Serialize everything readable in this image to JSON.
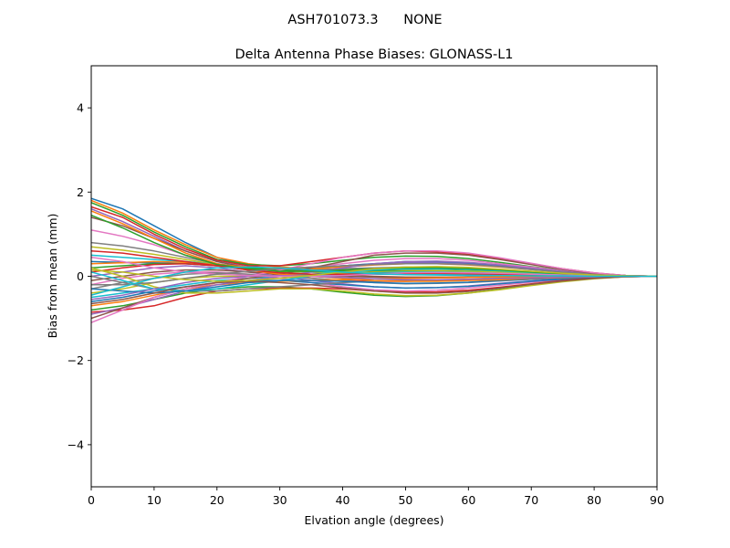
{
  "figure": {
    "suptitle": "ASH701073.3      NONE"
  },
  "chart_data": {
    "type": "line",
    "title": "Delta Antenna Phase Biases: GLONASS-L1",
    "xlabel": "Elvation angle (degrees)",
    "ylabel": "Bias from mean (mm)",
    "xlim": [
      0,
      90
    ],
    "ylim": [
      -5,
      5
    ],
    "xticks": [
      0,
      10,
      20,
      30,
      40,
      50,
      60,
      70,
      80,
      90
    ],
    "yticks": [
      -4,
      -2,
      0,
      2,
      4
    ],
    "ytick_labels": [
      "−4",
      "−2",
      "0",
      "2",
      "4"
    ],
    "grid": false,
    "legend": "none",
    "x": [
      0,
      5,
      10,
      15,
      20,
      25,
      30,
      35,
      40,
      45,
      50,
      55,
      60,
      65,
      70,
      75,
      80,
      85,
      90
    ],
    "series": [
      {
        "values": [
          1.85,
          1.6,
          1.2,
          0.8,
          0.45,
          0.25,
          0.15,
          0.1,
          0.05,
          0.05,
          0.05,
          0.05,
          0.03,
          0.02,
          0.02,
          0.01,
          0.0,
          0.0,
          0.0
        ]
      },
      {
        "values": [
          1.8,
          1.5,
          1.1,
          0.75,
          0.45,
          0.3,
          0.22,
          0.18,
          0.15,
          0.12,
          0.1,
          0.08,
          0.06,
          0.05,
          0.03,
          0.02,
          0.01,
          0.0,
          0.0
        ]
      },
      {
        "values": [
          1.75,
          1.45,
          1.05,
          0.7,
          0.4,
          0.28,
          0.25,
          0.3,
          0.38,
          0.45,
          0.48,
          0.47,
          0.42,
          0.33,
          0.23,
          0.14,
          0.07,
          0.02,
          0.0
        ]
      },
      {
        "values": [
          1.65,
          1.4,
          1.0,
          0.65,
          0.38,
          0.25,
          0.25,
          0.35,
          0.45,
          0.55,
          0.6,
          0.58,
          0.52,
          0.42,
          0.3,
          0.18,
          0.08,
          0.02,
          0.0
        ]
      },
      {
        "values": [
          1.6,
          1.3,
          0.95,
          0.6,
          0.35,
          0.22,
          0.18,
          0.2,
          0.25,
          0.3,
          0.33,
          0.33,
          0.3,
          0.25,
          0.18,
          0.1,
          0.05,
          0.01,
          0.0
        ]
      },
      {
        "values": [
          1.4,
          1.2,
          0.9,
          0.6,
          0.35,
          0.2,
          0.1,
          0.05,
          0.02,
          0.0,
          -0.02,
          -0.02,
          -0.02,
          -0.02,
          -0.01,
          -0.01,
          0.0,
          0.0,
          0.0
        ]
      },
      {
        "values": [
          1.1,
          0.95,
          0.75,
          0.5,
          0.3,
          0.2,
          0.18,
          0.22,
          0.3,
          0.38,
          0.42,
          0.42,
          0.38,
          0.3,
          0.22,
          0.13,
          0.06,
          0.02,
          0.0
        ]
      },
      {
        "values": [
          0.8,
          0.72,
          0.6,
          0.45,
          0.3,
          0.2,
          0.15,
          0.15,
          0.18,
          0.2,
          0.22,
          0.22,
          0.2,
          0.16,
          0.11,
          0.07,
          0.03,
          0.01,
          0.0
        ]
      },
      {
        "values": [
          0.7,
          0.62,
          0.52,
          0.4,
          0.28,
          0.18,
          0.12,
          0.1,
          0.08,
          0.06,
          0.05,
          0.04,
          0.03,
          0.02,
          0.02,
          0.01,
          0.0,
          0.0,
          0.0
        ]
      },
      {
        "values": [
          0.5,
          0.45,
          0.4,
          0.35,
          0.28,
          0.2,
          0.15,
          0.12,
          0.1,
          0.08,
          0.07,
          0.06,
          0.05,
          0.04,
          0.03,
          0.02,
          0.01,
          0.0,
          0.0
        ]
      },
      {
        "values": [
          0.35,
          0.33,
          0.32,
          0.3,
          0.25,
          0.2,
          0.18,
          0.2,
          0.25,
          0.3,
          0.35,
          0.35,
          0.32,
          0.26,
          0.19,
          0.11,
          0.05,
          0.01,
          0.0
        ]
      },
      {
        "values": [
          0.3,
          0.32,
          0.35,
          0.33,
          0.28,
          0.22,
          0.18,
          0.18,
          0.22,
          0.27,
          0.3,
          0.3,
          0.27,
          0.22,
          0.16,
          0.1,
          0.05,
          0.01,
          0.0
        ]
      },
      {
        "values": [
          0.2,
          0.25,
          0.3,
          0.3,
          0.25,
          0.2,
          0.15,
          0.12,
          0.12,
          0.13,
          0.14,
          0.14,
          0.13,
          0.11,
          0.08,
          0.05,
          0.02,
          0.01,
          0.0
        ]
      },
      {
        "values": [
          0.1,
          0.2,
          0.28,
          0.3,
          0.25,
          0.15,
          0.05,
          -0.05,
          -0.1,
          -0.12,
          -0.12,
          -0.1,
          -0.08,
          -0.06,
          -0.04,
          -0.02,
          -0.01,
          0.0,
          0.0
        ]
      },
      {
        "values": [
          0.0,
          0.1,
          0.2,
          0.25,
          0.2,
          0.1,
          0.0,
          -0.1,
          -0.18,
          -0.25,
          -0.28,
          -0.27,
          -0.23,
          -0.17,
          -0.11,
          -0.06,
          -0.02,
          0.0,
          0.0
        ]
      },
      {
        "values": [
          -0.1,
          0.0,
          0.1,
          0.15,
          0.15,
          0.1,
          0.05,
          0.02,
          0.0,
          -0.02,
          -0.03,
          -0.03,
          -0.02,
          -0.02,
          -0.01,
          -0.01,
          0.0,
          0.0,
          0.0
        ]
      },
      {
        "values": [
          -0.2,
          -0.05,
          0.05,
          0.1,
          0.1,
          0.05,
          -0.05,
          -0.15,
          -0.25,
          -0.32,
          -0.35,
          -0.33,
          -0.28,
          -0.21,
          -0.14,
          -0.08,
          -0.03,
          -0.01,
          0.0
        ]
      },
      {
        "values": [
          -0.3,
          -0.15,
          -0.05,
          0.05,
          0.08,
          0.05,
          0.0,
          -0.05,
          -0.1,
          -0.15,
          -0.18,
          -0.17,
          -0.15,
          -0.11,
          -0.07,
          -0.04,
          -0.02,
          0.0,
          0.0
        ]
      },
      {
        "values": [
          -0.4,
          -0.3,
          -0.15,
          -0.05,
          0.0,
          0.0,
          0.0,
          0.02,
          0.05,
          0.1,
          0.12,
          0.13,
          0.12,
          0.1,
          0.07,
          0.04,
          0.02,
          0.0,
          0.0
        ]
      },
      {
        "values": [
          -0.5,
          -0.4,
          -0.3,
          -0.2,
          -0.1,
          -0.05,
          0.0,
          0.05,
          0.1,
          0.15,
          0.18,
          0.18,
          0.16,
          0.13,
          0.09,
          0.05,
          0.02,
          0.01,
          0.0
        ]
      },
      {
        "values": [
          -0.6,
          -0.5,
          -0.35,
          -0.25,
          -0.15,
          -0.1,
          -0.1,
          -0.15,
          -0.2,
          -0.25,
          -0.28,
          -0.27,
          -0.24,
          -0.18,
          -0.12,
          -0.07,
          -0.03,
          -0.01,
          0.0
        ]
      },
      {
        "values": [
          -0.7,
          -0.6,
          -0.45,
          -0.3,
          -0.2,
          -0.15,
          -0.12,
          -0.1,
          -0.08,
          -0.06,
          -0.05,
          -0.04,
          -0.03,
          -0.02,
          -0.02,
          -0.01,
          0.0,
          0.0,
          0.0
        ]
      },
      {
        "values": [
          -0.8,
          -0.7,
          -0.55,
          -0.4,
          -0.3,
          -0.25,
          -0.25,
          -0.3,
          -0.38,
          -0.45,
          -0.48,
          -0.46,
          -0.4,
          -0.31,
          -0.21,
          -0.12,
          -0.05,
          -0.01,
          0.0
        ]
      },
      {
        "values": [
          -0.85,
          -0.8,
          -0.7,
          -0.5,
          -0.35,
          -0.3,
          -0.28,
          -0.28,
          -0.3,
          -0.35,
          -0.38,
          -0.37,
          -0.33,
          -0.26,
          -0.18,
          -0.1,
          -0.04,
          -0.01,
          0.0
        ]
      },
      {
        "values": [
          -0.9,
          -0.75,
          -0.55,
          -0.35,
          -0.2,
          -0.1,
          0.0,
          0.1,
          0.2,
          0.3,
          0.35,
          0.36,
          0.33,
          0.27,
          0.19,
          0.11,
          0.05,
          0.01,
          0.0
        ]
      },
      {
        "values": [
          -1.0,
          -0.75,
          -0.5,
          -0.3,
          -0.15,
          -0.05,
          0.05,
          0.2,
          0.35,
          0.5,
          0.55,
          0.55,
          0.5,
          0.4,
          0.28,
          0.16,
          0.07,
          0.02,
          0.0
        ]
      },
      {
        "values": [
          -1.1,
          -0.8,
          -0.5,
          -0.3,
          -0.15,
          0.0,
          0.15,
          0.3,
          0.45,
          0.55,
          0.6,
          0.6,
          0.55,
          0.44,
          0.31,
          0.18,
          0.08,
          0.02,
          0.0
        ]
      },
      {
        "values": [
          0.0,
          -0.15,
          -0.3,
          -0.35,
          -0.35,
          -0.3,
          -0.25,
          -0.2,
          -0.15,
          -0.12,
          -0.1,
          -0.09,
          -0.08,
          -0.06,
          -0.04,
          -0.02,
          -0.01,
          0.0,
          0.0
        ]
      },
      {
        "values": [
          0.2,
          0.0,
          -0.25,
          -0.4,
          -0.4,
          -0.35,
          -0.3,
          -0.3,
          -0.35,
          -0.42,
          -0.46,
          -0.45,
          -0.4,
          -0.32,
          -0.22,
          -0.13,
          -0.06,
          -0.01,
          0.0
        ]
      },
      {
        "values": [
          0.1,
          -0.1,
          -0.3,
          -0.35,
          -0.3,
          -0.2,
          -0.1,
          0.0,
          0.05,
          0.08,
          0.1,
          0.1,
          0.09,
          0.07,
          0.05,
          0.03,
          0.01,
          0.0,
          0.0
        ]
      },
      {
        "values": [
          -0.3,
          -0.35,
          -0.4,
          -0.35,
          -0.25,
          -0.15,
          -0.1,
          -0.1,
          -0.12,
          -0.15,
          -0.17,
          -0.16,
          -0.14,
          -0.1,
          -0.07,
          -0.04,
          -0.02,
          0.0,
          0.0
        ]
      },
      {
        "values": [
          1.55,
          1.25,
          0.9,
          0.55,
          0.3,
          0.15,
          0.05,
          0.0,
          -0.05,
          -0.1,
          -0.12,
          -0.12,
          -0.1,
          -0.08,
          -0.05,
          -0.03,
          -0.01,
          0.0,
          0.0
        ]
      },
      {
        "values": [
          1.45,
          1.15,
          0.8,
          0.5,
          0.28,
          0.18,
          0.12,
          0.12,
          0.15,
          0.18,
          0.2,
          0.2,
          0.18,
          0.15,
          0.1,
          0.06,
          0.03,
          0.01,
          0.0
        ]
      },
      {
        "values": [
          0.6,
          0.55,
          0.45,
          0.35,
          0.25,
          0.15,
          0.08,
          0.05,
          0.05,
          0.06,
          0.07,
          0.07,
          0.06,
          0.05,
          0.03,
          0.02,
          0.01,
          0.0,
          0.0
        ]
      },
      {
        "values": [
          -0.55,
          -0.45,
          -0.3,
          -0.15,
          -0.05,
          0.0,
          0.02,
          0.0,
          -0.03,
          -0.06,
          -0.08,
          -0.08,
          -0.07,
          -0.05,
          -0.04,
          -0.02,
          -0.01,
          0.0,
          0.0
        ]
      },
      {
        "values": [
          -0.65,
          -0.55,
          -0.4,
          -0.25,
          -0.15,
          -0.12,
          -0.15,
          -0.2,
          -0.28,
          -0.35,
          -0.4,
          -0.4,
          -0.36,
          -0.28,
          -0.19,
          -0.11,
          -0.05,
          -0.01,
          0.0
        ]
      },
      {
        "values": [
          0.45,
          0.35,
          0.2,
          0.1,
          0.05,
          0.02,
          0.0,
          0.0,
          0.02,
          0.05,
          0.08,
          0.09,
          0.08,
          0.07,
          0.05,
          0.03,
          0.01,
          0.0,
          0.0
        ]
      },
      {
        "values": [
          -0.2,
          -0.2,
          -0.15,
          -0.05,
          0.05,
          0.12,
          0.18,
          0.22,
          0.25,
          0.28,
          0.3,
          0.3,
          0.28,
          0.23,
          0.16,
          0.1,
          0.04,
          0.01,
          0.0
        ]
      },
      {
        "values": [
          0.15,
          0.1,
          0.0,
          -0.08,
          -0.12,
          -0.1,
          -0.05,
          0.02,
          0.1,
          0.18,
          0.22,
          0.23,
          0.21,
          0.17,
          0.12,
          0.07,
          0.03,
          0.01,
          0.0
        ]
      },
      {
        "values": [
          -0.45,
          -0.25,
          -0.05,
          0.1,
          0.2,
          0.22,
          0.2,
          0.15,
          0.1,
          0.06,
          0.04,
          0.03,
          0.02,
          0.02,
          0.01,
          0.01,
          0.0,
          0.0,
          0.0
        ]
      }
    ]
  }
}
